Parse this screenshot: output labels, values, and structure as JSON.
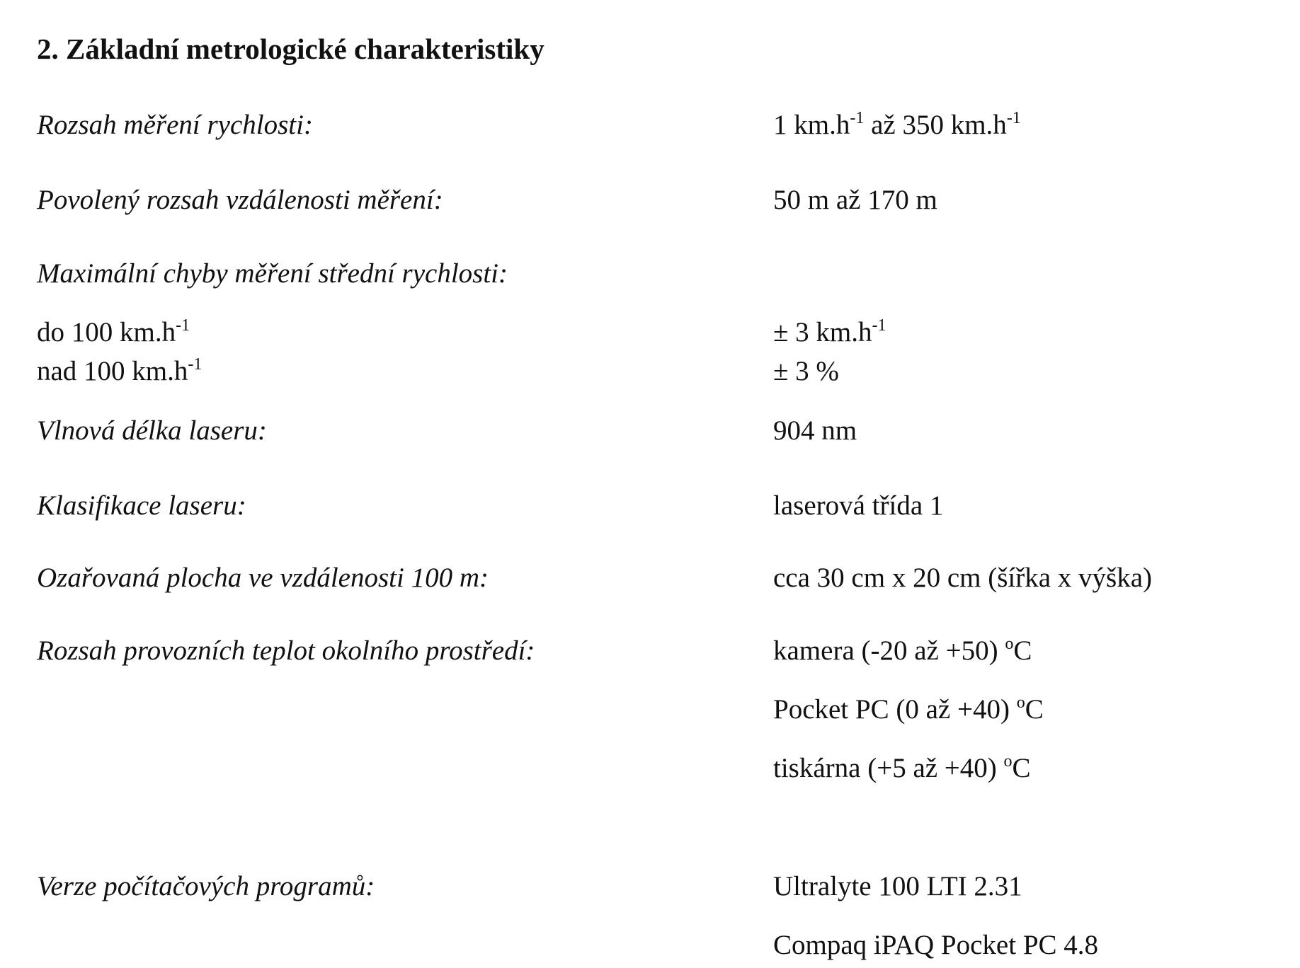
{
  "heading": "2. Základní metrologické charakteristiky",
  "rows": [
    {
      "label": "Rozsah měření  rychlosti:",
      "value": "1 km.h",
      "sup1": "-1",
      "value_mid": " až 350 km.h",
      "sup2": "-1"
    },
    {
      "label": "Povolený rozsah vzdálenosti měření:",
      "value": "50 m až 170 m"
    },
    {
      "label": "Maximální chyby měření střední rychlosti:"
    },
    {
      "label": "do 100 km.h",
      "label_sup": "-1",
      "value": "± 3 km.h",
      "value_sup": "-1"
    },
    {
      "label": "nad 100 km.h",
      "label_sup": "-1",
      "value": "± 3 %"
    },
    {
      "label": "Vlnová délka laseru:",
      "value": "904 nm"
    },
    {
      "label": "Klasifikace laseru:",
      "value": "laserová třída 1"
    },
    {
      "label": "Ozařovaná plocha ve vzdálenosti 100 m:",
      "value": "cca 30 cm x 20 cm (šířka x výška)"
    },
    {
      "label": "Rozsah provozních teplot okolního prostředí:",
      "values": [
        {
          "pre": "kamera  (-20 až +50) ",
          "sup": "o",
          "post": "C"
        },
        {
          "pre": "Pocket PC (0 až +40) ",
          "sup": "o",
          "post": "C"
        },
        {
          "pre": "tiskárna (+5 až +40) ",
          "sup": "o",
          "post": "C"
        }
      ]
    },
    {
      "label": "Verze počítačových programů:",
      "values": [
        "Ultralyte 100 LTI 2.31",
        "Compaq iPAQ Pocket PC 4.8"
      ]
    }
  ]
}
